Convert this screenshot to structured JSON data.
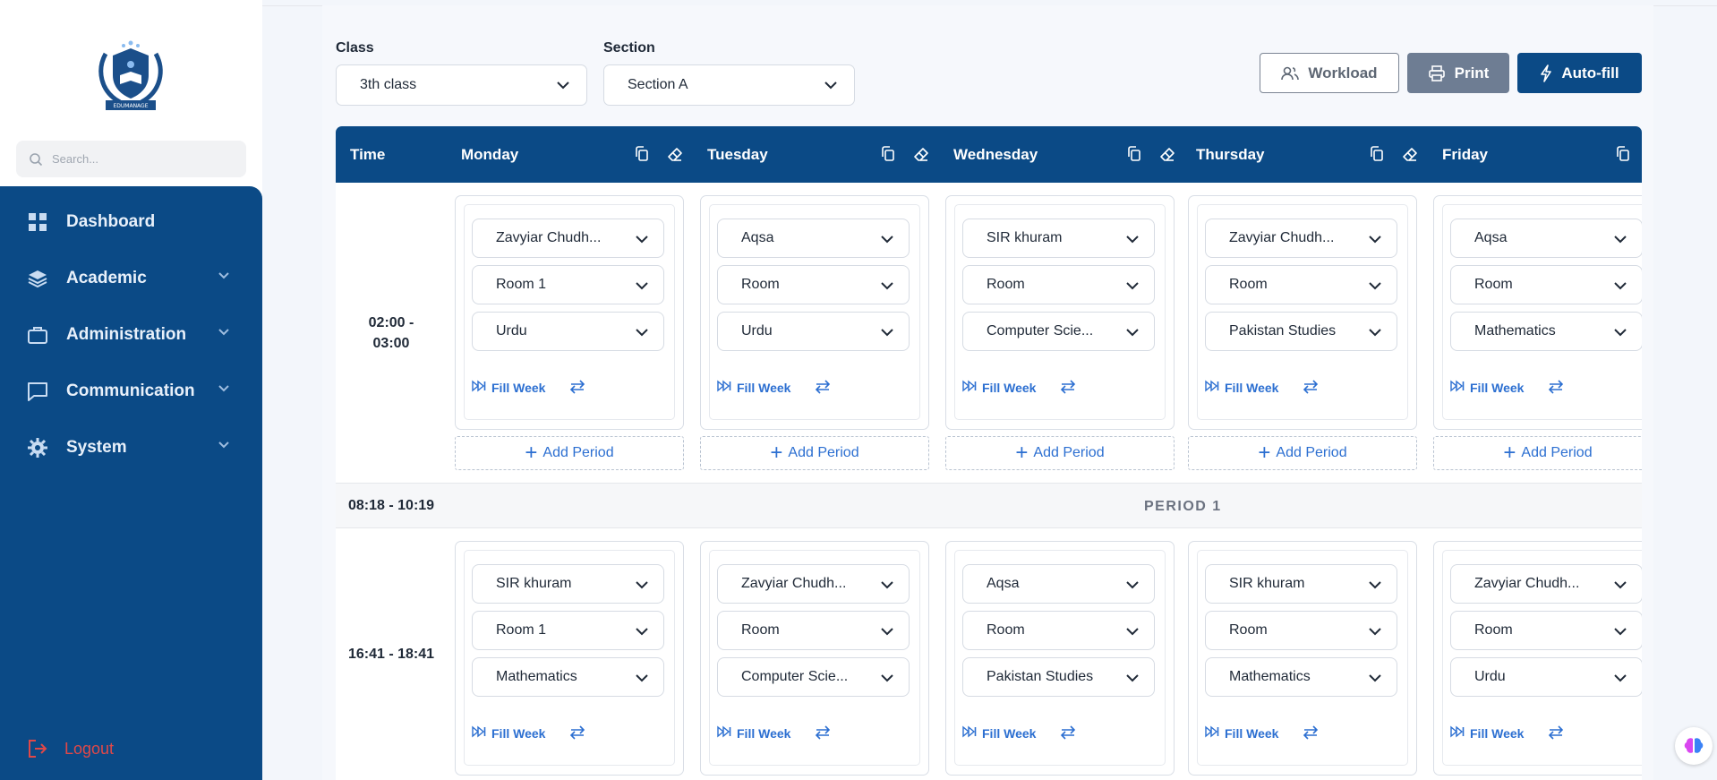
{
  "brand": {
    "logo_text": "EDUMANAGE"
  },
  "search": {
    "placeholder": "Search..."
  },
  "nav": {
    "items": [
      {
        "label": "Dashboard",
        "icon": "grid-icon"
      },
      {
        "label": "Academic",
        "icon": "layers-icon"
      },
      {
        "label": "Administration",
        "icon": "briefcase-icon"
      },
      {
        "label": "Communication",
        "icon": "chat-icon"
      },
      {
        "label": "System",
        "icon": "gear-icon"
      }
    ],
    "logout": "Logout"
  },
  "filters": {
    "class_label": "Class",
    "class_value": "3th class",
    "section_label": "Section",
    "section_value": "Section A"
  },
  "actions": {
    "workload": "Workload",
    "print": "Print",
    "autofill": "Auto-fill"
  },
  "timetable": {
    "time_header": "Time",
    "days": [
      "Monday",
      "Tuesday",
      "Wednesday",
      "Thursday",
      "Friday"
    ],
    "fill_week_label": "Fill Week",
    "add_period_label": "Add Period",
    "rows": [
      {
        "time_line1": "02:00 -",
        "time_line2": "03:00",
        "cells": [
          {
            "teacher": "Zavyiar Chudh...",
            "room": "Room 1",
            "subject": "Urdu"
          },
          {
            "teacher": "Aqsa",
            "room": "Room",
            "subject": "Urdu"
          },
          {
            "teacher": "SIR khuram",
            "room": "Room",
            "subject": "Computer Scie..."
          },
          {
            "teacher": "Zavyiar Chudh...",
            "room": "Room",
            "subject": "Pakistan Studies"
          },
          {
            "teacher": "Aqsa",
            "room": "Room",
            "subject": "Mathematics"
          }
        ]
      },
      {
        "time_line1": "16:41 - 18:41",
        "time_line2": "",
        "cells": [
          {
            "teacher": "SIR khuram",
            "room": "Room 1",
            "subject": "Mathematics"
          },
          {
            "teacher": "Zavyiar Chudh...",
            "room": "Room",
            "subject": "Computer Scie..."
          },
          {
            "teacher": "Aqsa",
            "room": "Room",
            "subject": "Pakistan Studies"
          },
          {
            "teacher": "SIR khuram",
            "room": "Room",
            "subject": "Mathematics"
          },
          {
            "teacher": "Zavyiar Chudh...",
            "room": "Room",
            "subject": "Urdu"
          }
        ]
      }
    ],
    "break": {
      "time": "08:18 - 10:19",
      "label": "PERIOD 1"
    }
  },
  "colors": {
    "primary": "#0b4a86",
    "accent": "#2c6fd1",
    "danger": "#e04848",
    "print": "#6e7d93"
  }
}
